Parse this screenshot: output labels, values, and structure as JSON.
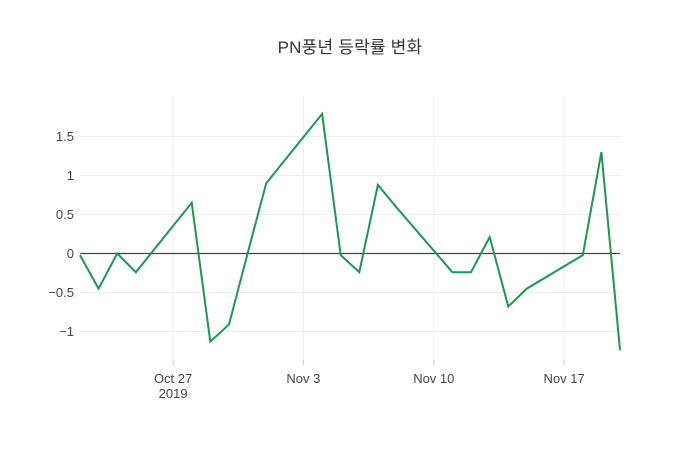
{
  "chart_data": {
    "type": "line",
    "title": "PN풍년 등락률 변화",
    "xlabel": "",
    "ylabel": "",
    "grid": true,
    "legend_position": "none",
    "x_axis": {
      "range_days": [
        0,
        29
      ],
      "ticks": [
        {
          "label": "Oct 27",
          "sublabel": "2019",
          "day": 5
        },
        {
          "label": "Nov 3",
          "sublabel": "",
          "day": 12
        },
        {
          "label": "Nov 10",
          "sublabel": "",
          "day": 19
        },
        {
          "label": "Nov 17",
          "sublabel": "",
          "day": 26
        }
      ]
    },
    "y_axis": {
      "ticks": [
        1.5,
        1,
        0.5,
        0,
        -0.5,
        -1
      ],
      "range": [
        -1.37,
        2.02
      ],
      "zero_line": true
    },
    "series": [
      {
        "name": "PN풍년 등락률",
        "color": "#1a9850",
        "points": [
          {
            "date": "2019-10-22",
            "day": 0,
            "value": -0.02
          },
          {
            "date": "2019-10-23",
            "day": 1,
            "value": -0.45
          },
          {
            "date": "2019-10-24",
            "day": 2,
            "value": 0.0
          },
          {
            "date": "2019-10-25",
            "day": 3,
            "value": -0.24
          },
          {
            "date": "2019-10-28",
            "day": 6,
            "value": 0.65
          },
          {
            "date": "2019-10-29",
            "day": 7,
            "value": -1.13
          },
          {
            "date": "2019-10-30",
            "day": 8,
            "value": -0.91
          },
          {
            "date": "2019-10-31",
            "day": 9,
            "value": 0.0
          },
          {
            "date": "2019-11-01",
            "day": 10,
            "value": 0.9
          },
          {
            "date": "2019-11-04",
            "day": 13,
            "value": 1.79
          },
          {
            "date": "2019-11-05",
            "day": 14,
            "value": -0.02
          },
          {
            "date": "2019-11-06",
            "day": 15,
            "value": -0.24
          },
          {
            "date": "2019-11-07",
            "day": 16,
            "value": 0.88
          },
          {
            "date": "2019-11-08",
            "day": 17,
            "value": 0.59
          },
          {
            "date": "2019-11-11",
            "day": 20,
            "value": -0.24
          },
          {
            "date": "2019-11-12",
            "day": 21,
            "value": -0.24
          },
          {
            "date": "2019-11-13",
            "day": 22,
            "value": 0.21
          },
          {
            "date": "2019-11-14",
            "day": 23,
            "value": -0.68
          },
          {
            "date": "2019-11-15",
            "day": 24,
            "value": -0.45
          },
          {
            "date": "2019-11-18",
            "day": 27,
            "value": -0.02
          },
          {
            "date": "2019-11-19",
            "day": 28,
            "value": 1.3
          },
          {
            "date": "2019-11-20",
            "day": 29,
            "value": -1.24
          }
        ]
      }
    ],
    "colors": {
      "line": "#1a9850",
      "grid": "#efefef",
      "zero_line": "#444444",
      "tick_mark": "#c9c9c9",
      "tick_text": "#444444",
      "title_text": "#333333",
      "background": "#ffffff"
    }
  }
}
